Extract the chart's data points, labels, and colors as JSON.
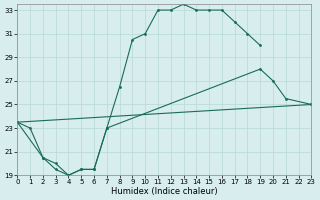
{
  "xlabel": "Humidex (Indice chaleur)",
  "bg_color": "#d8eeee",
  "grid_color": "#b8d8d8",
  "line_color": "#1a6b5a",
  "xlim": [
    0,
    23
  ],
  "ylim": [
    19,
    33.5
  ],
  "xticks": [
    0,
    1,
    2,
    3,
    4,
    5,
    6,
    7,
    8,
    9,
    10,
    11,
    12,
    13,
    14,
    15,
    16,
    17,
    18,
    19,
    20,
    21,
    22,
    23
  ],
  "yticks": [
    19,
    21,
    23,
    25,
    27,
    29,
    31,
    33
  ],
  "line1_x": [
    0,
    1,
    2,
    3,
    4,
    5,
    6,
    7,
    8,
    9,
    10,
    11,
    12,
    13,
    14,
    15,
    16,
    17,
    18,
    19
  ],
  "line1_y": [
    23.5,
    23.0,
    20.5,
    19.5,
    19.0,
    19.5,
    19.5,
    23.0,
    26.5,
    30.5,
    31.0,
    33.0,
    33.0,
    33.5,
    33.0,
    33.0,
    33.0,
    32.0,
    31.0,
    30.0
  ],
  "line2_x": [
    0,
    2,
    3,
    4,
    5,
    6,
    7,
    19,
    20,
    21,
    23
  ],
  "line2_y": [
    23.5,
    20.5,
    20.0,
    19.0,
    19.5,
    19.5,
    23.0,
    28.0,
    27.0,
    25.5,
    25.0
  ],
  "line3_x": [
    0,
    23
  ],
  "line3_y": [
    23.5,
    25.0
  ]
}
